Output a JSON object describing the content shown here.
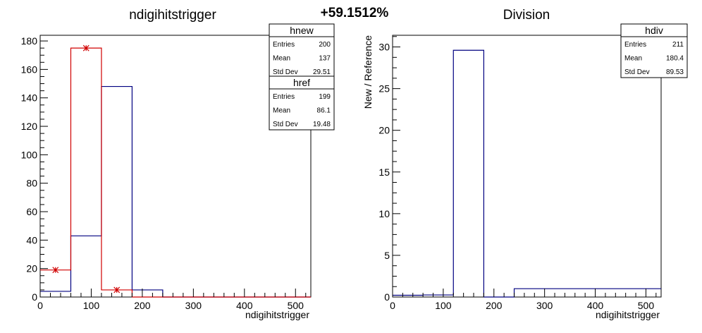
{
  "comparison_label": "+59.1512%",
  "chart_data": [
    {
      "type": "histogram",
      "title": "ndigihitstrigger",
      "xlabel": "ndigihitstrigger",
      "ylabel": "",
      "xlim": [
        0,
        530
      ],
      "ylim": [
        0,
        184
      ],
      "xticks": [
        0,
        100,
        200,
        300,
        400,
        500
      ],
      "yticks": [
        0,
        20,
        40,
        60,
        80,
        100,
        120,
        140,
        160,
        180
      ],
      "bin_edges": [
        0,
        60,
        120,
        180,
        240,
        300,
        360,
        420,
        480,
        530
      ],
      "series": [
        {
          "name": "hnew",
          "color": "#000080",
          "style": "step",
          "values": [
            4,
            43,
            148,
            5,
            0,
            0,
            0,
            0,
            0
          ]
        },
        {
          "name": "href",
          "color": "#d00000",
          "style": "step-markers",
          "values": [
            19,
            175,
            5,
            0,
            0,
            0,
            0,
            0,
            0
          ]
        }
      ],
      "stats": [
        {
          "name": "hnew",
          "rows": [
            {
              "label": "Entries",
              "value": "200"
            },
            {
              "label": "Mean",
              "value": "137"
            },
            {
              "label": "Std Dev",
              "value": "29.51"
            }
          ]
        },
        {
          "name": "href",
          "rows": [
            {
              "label": "Entries",
              "value": "199"
            },
            {
              "label": "Mean",
              "value": "86.1"
            },
            {
              "label": "Std Dev",
              "value": "19.48"
            }
          ]
        }
      ]
    },
    {
      "type": "histogram",
      "title": "Division",
      "xlabel": "ndigihitstrigger",
      "ylabel": "New / Reference",
      "xlim": [
        0,
        530
      ],
      "ylim": [
        0,
        31.4
      ],
      "xticks": [
        0,
        100,
        200,
        300,
        400,
        500
      ],
      "yticks": [
        0,
        5,
        10,
        15,
        20,
        25,
        30
      ],
      "bin_edges": [
        0,
        60,
        120,
        180,
        240,
        300,
        360,
        420,
        480,
        530
      ],
      "series": [
        {
          "name": "hdiv",
          "color": "#000080",
          "style": "step",
          "values": [
            0.21,
            0.25,
            29.6,
            0,
            1,
            1,
            1,
            1,
            1
          ]
        }
      ],
      "stats": [
        {
          "name": "hdiv",
          "rows": [
            {
              "label": "Entries",
              "value": "211"
            },
            {
              "label": "Mean",
              "value": "180.4"
            },
            {
              "label": "Std Dev",
              "value": "89.53"
            }
          ]
        }
      ]
    }
  ]
}
